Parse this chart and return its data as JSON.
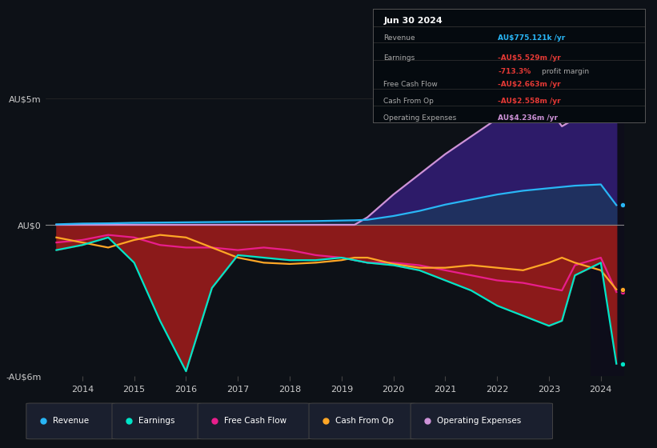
{
  "bg_color": "#0d1117",
  "plot_bg_color": "#0d1117",
  "years": [
    2013.5,
    2014.0,
    2014.5,
    2015.0,
    2015.5,
    2016.0,
    2016.5,
    2017.0,
    2017.5,
    2018.0,
    2018.5,
    2019.0,
    2019.25,
    2019.5,
    2020.0,
    2020.5,
    2021.0,
    2021.5,
    2022.0,
    2022.5,
    2023.0,
    2023.25,
    2023.5,
    2024.0,
    2024.3
  ],
  "revenue": [
    0.02,
    0.05,
    0.06,
    0.08,
    0.09,
    0.1,
    0.11,
    0.12,
    0.13,
    0.14,
    0.15,
    0.17,
    0.18,
    0.2,
    0.35,
    0.55,
    0.8,
    1.0,
    1.2,
    1.35,
    1.45,
    1.5,
    1.55,
    1.6,
    0.78
  ],
  "earnings": [
    -1.0,
    -0.8,
    -0.5,
    -1.5,
    -3.8,
    -5.8,
    -2.5,
    -1.2,
    -1.3,
    -1.4,
    -1.4,
    -1.3,
    -1.4,
    -1.5,
    -1.6,
    -1.8,
    -2.2,
    -2.6,
    -3.2,
    -3.6,
    -4.0,
    -3.8,
    -2.0,
    -1.5,
    -5.5
  ],
  "free_cash_flow": [
    -0.7,
    -0.6,
    -0.4,
    -0.5,
    -0.8,
    -0.9,
    -0.9,
    -1.0,
    -0.9,
    -1.0,
    -1.2,
    -1.3,
    -1.4,
    -1.5,
    -1.5,
    -1.6,
    -1.8,
    -2.0,
    -2.2,
    -2.3,
    -2.5,
    -2.6,
    -1.6,
    -1.3,
    -2.66
  ],
  "cash_from_op": [
    -0.5,
    -0.7,
    -0.9,
    -0.6,
    -0.4,
    -0.5,
    -0.9,
    -1.3,
    -1.5,
    -1.55,
    -1.5,
    -1.4,
    -1.3,
    -1.3,
    -1.55,
    -1.7,
    -1.7,
    -1.6,
    -1.7,
    -1.8,
    -1.5,
    -1.3,
    -1.5,
    -1.8,
    -2.56
  ],
  "operating_expenses": [
    0.0,
    0.0,
    0.0,
    0.0,
    0.0,
    0.0,
    0.0,
    0.0,
    0.0,
    0.0,
    0.0,
    0.0,
    0.0,
    0.3,
    1.2,
    2.0,
    2.8,
    3.5,
    4.2,
    5.1,
    4.6,
    3.9,
    4.2,
    4.5,
    4.24
  ],
  "ylim": [
    -6,
    5
  ],
  "yticks": [
    -6,
    0,
    5
  ],
  "ytick_labels": [
    "-AU$6m",
    "AU$0",
    "AU$5m"
  ],
  "xlim": [
    2013.3,
    2024.45
  ],
  "xticks": [
    2014,
    2015,
    2016,
    2017,
    2018,
    2019,
    2020,
    2021,
    2022,
    2023,
    2024
  ],
  "colors": {
    "revenue": "#29b6f6",
    "earnings": "#00e5c8",
    "free_cash_flow": "#e91e8c",
    "cash_from_op": "#ffa726",
    "operating_expenses": "#ce93d8"
  },
  "fill_negative_color": "#8b1a1a",
  "fill_opex_color": "#2d1b69",
  "fill_revenue_color": "#1a3a5c",
  "zero_line_color": "#888888",
  "grid_color": "#2a2a2a",
  "text_color": "#cccccc",
  "highlight_start": 2023.8,
  "highlight_color": "#0d0d1a",
  "legend_items": [
    {
      "label": "Revenue",
      "color": "#29b6f6"
    },
    {
      "label": "Earnings",
      "color": "#00e5c8"
    },
    {
      "label": "Free Cash Flow",
      "color": "#e91e8c"
    },
    {
      "label": "Cash From Op",
      "color": "#ffa726"
    },
    {
      "label": "Operating Expenses",
      "color": "#ce93d8"
    }
  ]
}
